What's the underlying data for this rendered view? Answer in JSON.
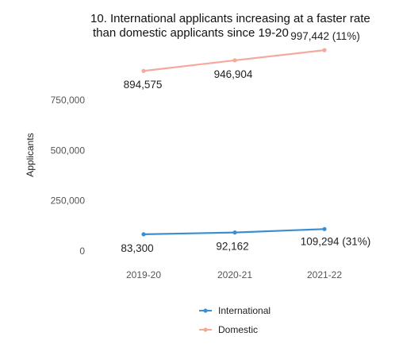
{
  "chart_data": {
    "type": "line",
    "title_lines": [
      "10. International applicants increasing at a faster rate",
      "than domestic applicants since 19-20"
    ],
    "ylabel": "Applicants",
    "xlabel": "",
    "categories": [
      "2019-20",
      "2020-21",
      "2021-22"
    ],
    "ylim": [
      0,
      1000000
    ],
    "yticks": [
      {
        "value": 0,
        "label": "0"
      },
      {
        "value": 250000,
        "label": "250,000"
      },
      {
        "value": 500000,
        "label": "500,000"
      },
      {
        "value": 750000,
        "label": "750,000"
      }
    ],
    "grid": false,
    "legend_position": "bottom",
    "series": [
      {
        "name": "Domestic",
        "key": "domestic",
        "color": "#f4a99a",
        "values": [
          894575,
          946904,
          997442
        ],
        "labels": [
          "894,575",
          "946,904",
          "997,442 (11%)"
        ]
      },
      {
        "name": "International",
        "key": "international",
        "color": "#3b8fd0",
        "values": [
          83300,
          92162,
          109294
        ],
        "labels": [
          "83,300",
          "92,162",
          "109,294 (31%)"
        ]
      }
    ],
    "legend_order": [
      "International",
      "Domestic"
    ]
  }
}
